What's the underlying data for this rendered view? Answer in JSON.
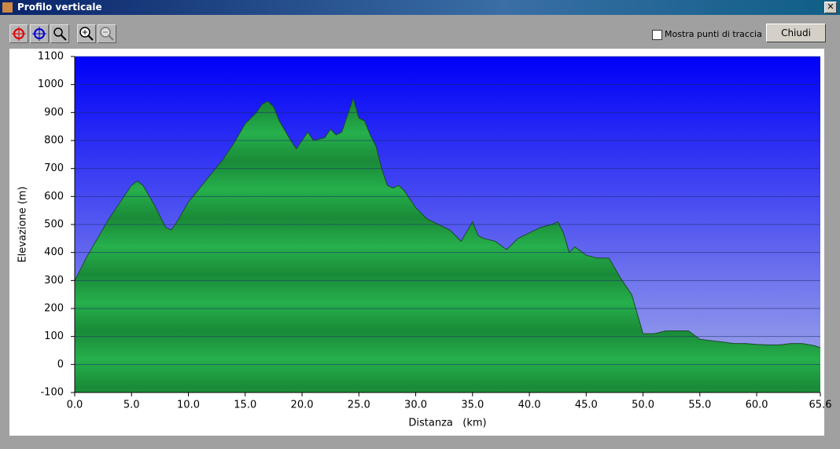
{
  "window": {
    "title": "Profilo verticale",
    "checkbox_label": "Mostra punti di traccia",
    "button": "Chiudi"
  },
  "chart_data": {
    "type": "area",
    "x_label": "Distanza   (km)",
    "y_label": "Elevazione (m)",
    "x": [
      0,
      1,
      2,
      3,
      4,
      5,
      5.5,
      6,
      7,
      8,
      8.5,
      9,
      10,
      11,
      12,
      13,
      14,
      15,
      16,
      16.5,
      17,
      17.5,
      18,
      19,
      19.5,
      20,
      20.5,
      21,
      22,
      22.5,
      23,
      23.5,
      24,
      24.5,
      25,
      25.5,
      26,
      26.5,
      27,
      27.5,
      28,
      28.5,
      29,
      30,
      31,
      32,
      33,
      34,
      35,
      35.5,
      36,
      37,
      38,
      39,
      40,
      41,
      42,
      42.5,
      43,
      43.5,
      44,
      45,
      46,
      47,
      48,
      49,
      50,
      51,
      52,
      53,
      54,
      55,
      56,
      57,
      58,
      59,
      60,
      61,
      62,
      63,
      64,
      65,
      65.6
    ],
    "values": [
      300,
      380,
      450,
      520,
      580,
      640,
      655,
      640,
      570,
      490,
      480,
      510,
      580,
      630,
      680,
      730,
      790,
      860,
      900,
      930,
      940,
      920,
      870,
      800,
      770,
      800,
      830,
      800,
      810,
      840,
      820,
      830,
      890,
      950,
      880,
      870,
      820,
      780,
      700,
      640,
      630,
      640,
      620,
      560,
      520,
      500,
      480,
      440,
      510,
      460,
      450,
      440,
      410,
      450,
      470,
      490,
      500,
      510,
      470,
      400,
      420,
      390,
      380,
      380,
      310,
      250,
      110,
      110,
      120,
      120,
      120,
      90,
      85,
      80,
      75,
      75,
      72,
      70,
      70,
      75,
      75,
      68,
      60
    ],
    "xlim": [
      0,
      65.6
    ],
    "ylim": [
      -100,
      1100
    ],
    "xticks": [
      {
        "value": 0,
        "label": "0.0"
      },
      {
        "value": 5,
        "label": "5.0"
      },
      {
        "value": 10,
        "label": "10.0"
      },
      {
        "value": 15,
        "label": "15.0"
      },
      {
        "value": 20,
        "label": "20.0"
      },
      {
        "value": 25,
        "label": "25.0"
      },
      {
        "value": 30,
        "label": "30.0"
      },
      {
        "value": 35,
        "label": "35.0"
      },
      {
        "value": 40,
        "label": "40.0"
      },
      {
        "value": 45,
        "label": "45.0"
      },
      {
        "value": 50,
        "label": "50.0"
      },
      {
        "value": 55,
        "label": "55.0"
      },
      {
        "value": 60,
        "label": "60.0"
      },
      65.6
    ],
    "yticks": [
      -100,
      0,
      100,
      200,
      300,
      400,
      500,
      600,
      700,
      800,
      900,
      1000,
      1100
    ],
    "grid": true,
    "color": "#22a844"
  }
}
